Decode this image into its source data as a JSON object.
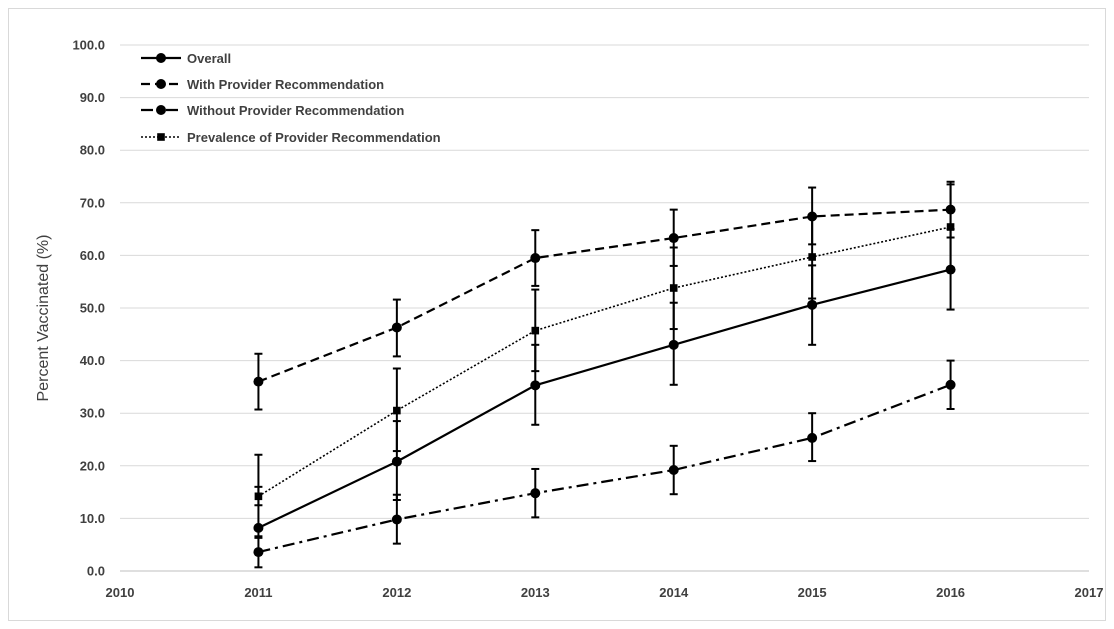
{
  "chart_data": {
    "type": "line",
    "title": "",
    "xlabel": "",
    "ylabel": "Percent Vaccinated (%)",
    "xlim": [
      2010,
      2017
    ],
    "ylim": [
      0,
      100
    ],
    "x_ticks": [
      "2010",
      "2011",
      "2012",
      "2013",
      "2014",
      "2015",
      "2016",
      "2017"
    ],
    "y_ticks": [
      "0.0",
      "10.0",
      "20.0",
      "30.0",
      "40.0",
      "50.0",
      "60.0",
      "70.0",
      "80.0",
      "90.0",
      "100.0"
    ],
    "grid": "horizontal",
    "legend_position": "top-left",
    "x": [
      2011,
      2012,
      2013,
      2014,
      2015,
      2016
    ],
    "series": [
      {
        "name": "Overall",
        "style": "solid",
        "marker": "circle",
        "values": [
          8.2,
          20.8,
          35.3,
          43.0,
          50.6,
          57.3
        ],
        "err_low": [
          6.3,
          13.5,
          27.8,
          35.4,
          43.0,
          49.7
        ],
        "err_high": [
          22.1,
          28.5,
          43.0,
          51.0,
          58.1,
          65.0
        ]
      },
      {
        "name": "With Provider Recommendation",
        "style": "dashed",
        "marker": "circle",
        "values": [
          36.0,
          46.3,
          59.5,
          63.3,
          67.4,
          68.7
        ],
        "err_low": [
          30.7,
          40.8,
          54.2,
          58.0,
          62.1,
          63.4
        ],
        "err_high": [
          41.3,
          51.6,
          64.8,
          68.7,
          72.9,
          73.5
        ]
      },
      {
        "name": "Without Provider Recommendation",
        "style": "dash-dot",
        "marker": "circle",
        "values": [
          3.6,
          9.8,
          14.8,
          19.2,
          25.3,
          35.4
        ],
        "err_low": [
          0.7,
          5.2,
          10.2,
          14.6,
          20.9,
          30.8
        ],
        "err_high": [
          6.6,
          14.5,
          19.4,
          23.8,
          30.0,
          40.0
        ]
      },
      {
        "name": "Prevalence of Provider Recommendation",
        "style": "dotted",
        "marker": "square",
        "values": [
          14.2,
          30.5,
          45.7,
          53.8,
          59.7,
          65.4
        ],
        "err_low": [
          12.5,
          22.8,
          38.0,
          46.0,
          51.8,
          57.6
        ],
        "err_high": [
          16.0,
          38.5,
          53.5,
          61.5,
          67.5,
          74.0
        ]
      }
    ]
  }
}
